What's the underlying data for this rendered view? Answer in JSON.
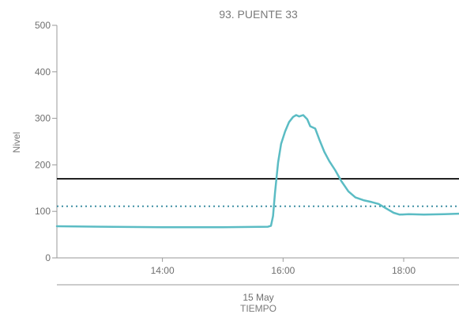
{
  "chart_data": {
    "type": "line",
    "title": "93. PUENTE 33",
    "ylabel": "Nivel",
    "xlabel": "TIEMPO",
    "x_date_label": "15 May",
    "ylim": [
      0,
      500
    ],
    "xlim": [
      "12:15",
      "18:55"
    ],
    "y_ticks": [
      "0",
      "100",
      "200",
      "300",
      "400",
      "500"
    ],
    "x_ticks": [
      "14:00",
      "16:00",
      "18:00"
    ],
    "grid": false,
    "legend": "none",
    "colors": {
      "series": "#5bbcc4",
      "threshold_high": "#222222",
      "threshold_low": "#3f8fa3",
      "axis": "#9a9a9a",
      "text": "#6f6f6f"
    },
    "thresholds": [
      {
        "value": 170,
        "style": "solid"
      },
      {
        "value": 111,
        "style": "dotted"
      }
    ],
    "series": [
      {
        "points": [
          [
            "12:15",
            68
          ],
          [
            "13:00",
            67
          ],
          [
            "14:00",
            66
          ],
          [
            "15:00",
            66
          ],
          [
            "15:45",
            67
          ],
          [
            "15:48",
            69
          ],
          [
            "15:50",
            90
          ],
          [
            "15:52",
            140
          ],
          [
            "15:55",
            205
          ],
          [
            "15:58",
            245
          ],
          [
            "16:02",
            272
          ],
          [
            "16:06",
            292
          ],
          [
            "16:10",
            303
          ],
          [
            "16:13",
            307
          ],
          [
            "16:16",
            304
          ],
          [
            "16:20",
            307
          ],
          [
            "16:24",
            298
          ],
          [
            "16:27",
            283
          ],
          [
            "16:32",
            278
          ],
          [
            "16:36",
            255
          ],
          [
            "16:41",
            228
          ],
          [
            "16:46",
            208
          ],
          [
            "16:52",
            188
          ],
          [
            "16:58",
            165
          ],
          [
            "17:05",
            143
          ],
          [
            "17:12",
            130
          ],
          [
            "17:20",
            124
          ],
          [
            "17:28",
            120
          ],
          [
            "17:35",
            116
          ],
          [
            "17:42",
            107
          ],
          [
            "17:50",
            97
          ],
          [
            "17:56",
            93
          ],
          [
            "18:05",
            94
          ],
          [
            "18:20",
            93
          ],
          [
            "18:40",
            94
          ],
          [
            "18:55",
            95
          ]
        ]
      }
    ]
  }
}
